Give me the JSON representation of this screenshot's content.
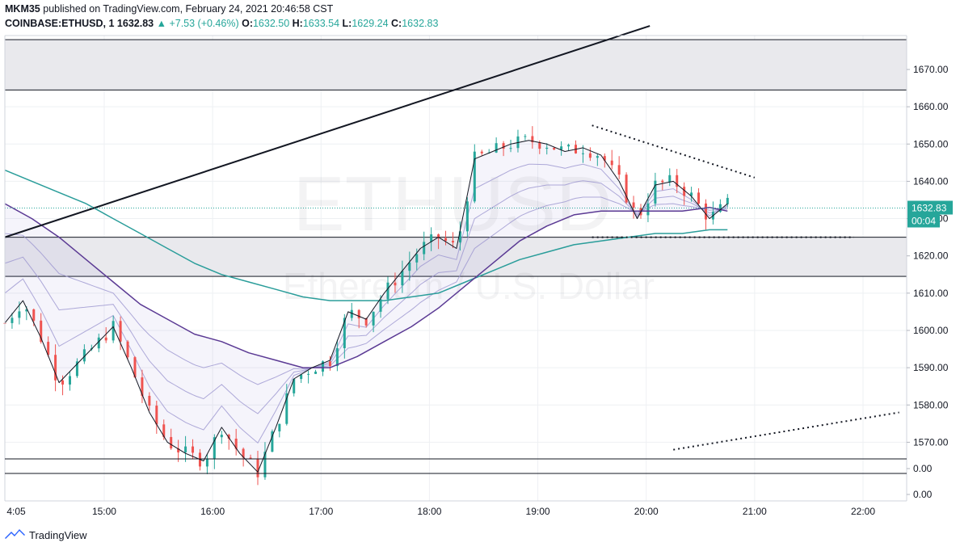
{
  "header": {
    "line1_user": "MKM35",
    "line1_rest": "published on TradingView.com, February 24, 2021 20:46:58 CST",
    "symbol": "COINBASE:ETHUSD, 1",
    "last": "1632.83",
    "change": "▲ +7.53 (+0.46%)",
    "o_label": "O:",
    "o_value": "1632.50",
    "h_label": "H:",
    "h_value": "1633.54",
    "l_label": "L:",
    "l_value": "1629.24",
    "c_label": "C:",
    "c_value": "1632.83"
  },
  "watermark": {
    "symbol": "ETHUSD",
    "name": "Ethereum / U.S. Dollar"
  },
  "price_label": "1632.83",
  "countdown_label": "00:04",
  "footer": {
    "brand": "TradingView"
  },
  "colors": {
    "up": "#26a69a",
    "down": "#ef5350",
    "zone": "#e9e9ed",
    "ema_fast": "#131722",
    "ribbon": "#9b95d0",
    "ema_slow": "#5b3a94",
    "ema_long": "#2a9d9a"
  },
  "chart_data": {
    "type": "line",
    "title": "COINBASE:ETHUSD, 1",
    "x_tick_labels": [
      "4:05",
      "15:00",
      "16:00",
      "17:00",
      "18:00",
      "19:00",
      "20:00",
      "21:00",
      "22:00"
    ],
    "y_tick_labels": [
      "1670.00",
      "1660.00",
      "1650.00",
      "1640.00",
      "1630.00",
      "1620.00",
      "1610.00",
      "1600.00",
      "1590.00",
      "1580.00",
      "1570.00"
    ],
    "indicator_tick_labels": [
      "0.00",
      "0.00"
    ],
    "ylim": [
      1566,
      1683
    ],
    "series": [
      {
        "type": "line",
        "x": [
          "14:05",
          "14:15",
          "14:25",
          "14:35",
          "14:45",
          "14:55",
          "15:05",
          "15:15",
          "15:25",
          "15:35",
          "15:45",
          "15:55",
          "16:05",
          "16:15",
          "16:25",
          "16:35",
          "16:45",
          "16:55",
          "17:05",
          "17:15",
          "17:25",
          "17:35",
          "17:45",
          "17:55",
          "18:05",
          "18:15",
          "18:25",
          "18:35",
          "18:45",
          "18:55",
          "19:05",
          "19:15",
          "19:25",
          "19:35",
          "19:45",
          "19:55",
          "20:05",
          "20:15",
          "20:25",
          "20:35",
          "20:45"
        ],
        "values": [
          1602,
          1608,
          1598,
          1586,
          1591,
          1596,
          1601,
          1590,
          1578,
          1570,
          1567,
          1565,
          1574,
          1567,
          1562,
          1574,
          1587,
          1590,
          1592,
          1605,
          1603,
          1610,
          1616,
          1622,
          1625,
          1622,
          1646,
          1648,
          1650,
          1651,
          1650,
          1648,
          1649,
          1647,
          1640,
          1630,
          1639,
          1640,
          1636,
          1630,
          1634
        ]
      },
      {
        "type": "line",
        "x": [
          "14:05",
          "14:20",
          "14:35",
          "14:50",
          "15:05",
          "15:20",
          "15:35",
          "15:50",
          "16:05",
          "16:20",
          "16:35",
          "16:50",
          "17:05",
          "17:20",
          "17:35",
          "17:50",
          "18:05",
          "18:20",
          "18:35",
          "18:50",
          "19:05",
          "19:20",
          "19:35",
          "19:50",
          "20:05",
          "20:20",
          "20:35",
          "20:45"
        ],
        "values": [
          1643,
          1640,
          1637,
          1634,
          1630,
          1626,
          1622,
          1618,
          1615,
          1613,
          1611,
          1609,
          1608,
          1608,
          1608,
          1609,
          1610,
          1613,
          1616,
          1619,
          1621,
          1623,
          1624,
          1625,
          1626,
          1626,
          1627,
          1627
        ]
      },
      {
        "type": "line",
        "x": [
          "14:05",
          "14:20",
          "14:35",
          "14:50",
          "15:05",
          "15:20",
          "15:35",
          "15:50",
          "16:05",
          "16:20",
          "16:35",
          "16:50",
          "17:05",
          "17:20",
          "17:35",
          "17:50",
          "18:05",
          "18:20",
          "18:35",
          "18:50",
          "19:05",
          "19:20",
          "19:35",
          "19:50",
          "20:05",
          "20:20",
          "20:35",
          "20:45"
        ],
        "values": [
          1634,
          1630,
          1625,
          1619,
          1613,
          1607,
          1603,
          1599,
          1597,
          1594,
          1592,
          1590,
          1590,
          1593,
          1597,
          1601,
          1606,
          1612,
          1618,
          1624,
          1628,
          1631,
          1632,
          1632,
          1632,
          1632,
          1633,
          1632
        ]
      }
    ],
    "annotations": [
      {
        "type": "trendline",
        "x": [
          "14:05",
          "19:45"
        ],
        "y": [
          1625,
          1679
        ]
      },
      {
        "type": "dotted_trendline",
        "x": [
          "19:30",
          "21:00"
        ],
        "y": [
          1655,
          1641
        ]
      },
      {
        "type": "dotted_trendline",
        "x": [
          "19:30",
          "21:55"
        ],
        "y": [
          1625,
          1625
        ]
      },
      {
        "type": "dotted_trendline",
        "x": [
          "20:15",
          "22:20"
        ],
        "y": [
          1568,
          1578
        ]
      },
      {
        "type": "zone",
        "y": [
          1664.5,
          1678
        ]
      },
      {
        "type": "zone",
        "y": [
          1614.5,
          1625
        ]
      }
    ],
    "grid": true
  }
}
